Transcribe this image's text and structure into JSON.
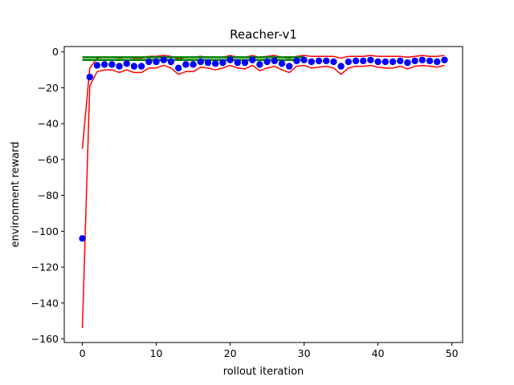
{
  "chart_data": {
    "type": "scatter",
    "title": "Reacher-v1",
    "xlabel": "rollout iteration",
    "ylabel": "environment reward",
    "xlim": [
      -2.45,
      51.45
    ],
    "ylim": [
      -162,
      3
    ],
    "xticks": [
      0,
      10,
      20,
      30,
      40,
      50
    ],
    "yticks": [
      0,
      -20,
      -40,
      -60,
      -80,
      -100,
      -120,
      -140,
      -160
    ],
    "grid": false,
    "legend": "none",
    "colors": {
      "mean": "#0000ff",
      "bounds": "#ff0000",
      "reference": "#008000"
    },
    "x": [
      0,
      1,
      2,
      3,
      4,
      5,
      6,
      7,
      8,
      9,
      10,
      11,
      12,
      13,
      14,
      15,
      16,
      17,
      18,
      19,
      20,
      21,
      22,
      23,
      24,
      25,
      26,
      27,
      28,
      29,
      30,
      31,
      32,
      33,
      34,
      35,
      36,
      37,
      38,
      39,
      40,
      41,
      42,
      43,
      44,
      45,
      46,
      47,
      48,
      49
    ],
    "series": [
      {
        "role": "mean",
        "marker": "circle",
        "values": [
          -104,
          -14,
          -7.5,
          -7,
          -7,
          -8,
          -6.5,
          -8,
          -8,
          -5.5,
          -5.5,
          -4.5,
          -5.5,
          -9,
          -7,
          -7,
          -5.5,
          -6,
          -6.5,
          -6,
          -4.5,
          -6,
          -6,
          -4.5,
          -7,
          -5.5,
          -5,
          -6.5,
          -8,
          -5,
          -4.5,
          -5.5,
          -5,
          -5,
          -5.5,
          -8,
          -5.5,
          -5,
          -5,
          -4.5,
          -5.5,
          -5.5,
          -5.5,
          -5,
          -6,
          -5,
          -4.5,
          -5,
          -5.5,
          -4.5
        ]
      },
      {
        "role": "upper-bound",
        "values": [
          -54,
          -9,
          -3.5,
          -3,
          -3,
          -3.5,
          -3,
          -3.5,
          -3.5,
          -2.5,
          -2.5,
          -2,
          -2.5,
          -4,
          -3,
          -3,
          -2.5,
          -3,
          -3,
          -3,
          -2,
          -3,
          -3,
          -2,
          -3,
          -2.5,
          -2,
          -3,
          -3.5,
          -2.5,
          -2,
          -2.5,
          -2.5,
          -2.5,
          -2.5,
          -3.5,
          -2.5,
          -2.5,
          -2.5,
          -2,
          -2.5,
          -2.5,
          -2.5,
          -2.5,
          -3,
          -2.5,
          -2,
          -2.5,
          -2.5,
          -2
        ]
      },
      {
        "role": "lower-bound",
        "values": [
          -154,
          -19,
          -11,
          -10,
          -10,
          -11.5,
          -10,
          -11.5,
          -11.5,
          -9,
          -9,
          -7.5,
          -9,
          -12.5,
          -11,
          -11,
          -8.5,
          -9,
          -10,
          -9,
          -7.5,
          -9,
          -9.5,
          -7.5,
          -10.5,
          -9,
          -8,
          -10,
          -11.5,
          -8,
          -7.5,
          -9,
          -8.5,
          -8,
          -9,
          -12.5,
          -9,
          -8,
          -8,
          -7.5,
          -8.5,
          -9,
          -9,
          -8,
          -9.5,
          -8,
          -7.5,
          -8,
          -8.5,
          -7.5
        ]
      },
      {
        "role": "reference-upper",
        "x_range": [
          0,
          30
        ],
        "value": -3.0
      },
      {
        "role": "reference-lower",
        "x_range": [
          0,
          30
        ],
        "value": -4.5
      }
    ]
  }
}
